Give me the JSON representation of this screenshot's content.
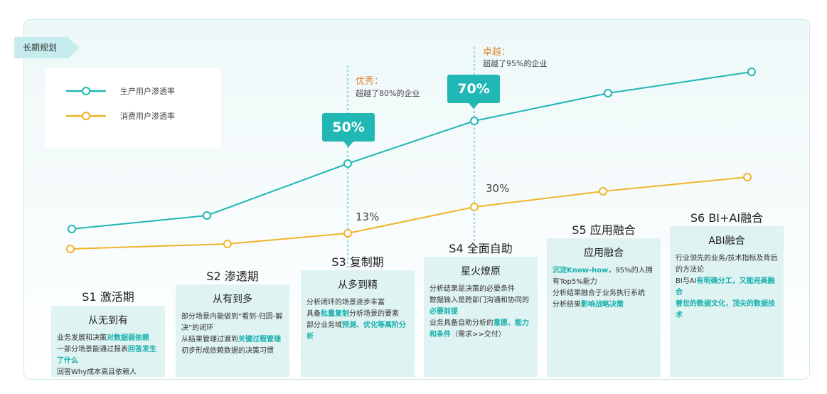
{
  "tag": "长期规划",
  "legend": {
    "series1": "生产用户渗透率",
    "series2": "消费用户渗透率"
  },
  "annotations": {
    "s3_title": "优秀：",
    "s3_sub": "超越了80%的企业",
    "s4_title": "卓越：",
    "s4_sub": "超越了95%的企业"
  },
  "bubbles": {
    "s3": "50%",
    "s4": "70%"
  },
  "pcts": {
    "s3": "13%",
    "s4": "30%"
  },
  "colors": {
    "teal": "#20b7b5",
    "yellow": "#f0b429"
  },
  "chart_data": {
    "type": "line",
    "categories": [
      "S1",
      "S2",
      "S3",
      "S4",
      "S5",
      "S6"
    ],
    "series": [
      {
        "name": "生产用户渗透率",
        "values": [
          null,
          null,
          50,
          70,
          null,
          null
        ]
      },
      {
        "name": "消费用户渗透率",
        "values": [
          null,
          null,
          13,
          30,
          null,
          null
        ]
      }
    ]
  },
  "stages": [
    {
      "title": "S1 激活期",
      "heading": "从无到有",
      "lines": [
        [
          {
            "t": "业务发展和决策"
          },
          {
            "t": "对数据弱依赖",
            "hl": true
          }
        ],
        [
          {
            "t": "一部分场景能通过报表"
          },
          {
            "t": "回答发生了什么",
            "hl": true
          }
        ],
        [
          {
            "t": "回答Why成本高且依赖人"
          }
        ]
      ]
    },
    {
      "title": "S2 渗透期",
      "heading": "从有到多",
      "lines": [
        [
          {
            "t": "部分场景内能做到“看到-归因-解决”的闭环"
          }
        ],
        [
          {
            "t": "从结果管理过渡到"
          },
          {
            "t": "关键过程管理",
            "hl": true
          }
        ],
        [
          {
            "t": "初步形成依赖数据的决策习惯"
          }
        ]
      ]
    },
    {
      "title": "S3 复制期",
      "heading": "从多到精",
      "lines": [
        [
          {
            "t": "分析闭环的场景逐步丰富"
          }
        ],
        [
          {
            "t": "具备"
          },
          {
            "t": "批量复制",
            "hl": true
          },
          {
            "t": "分析场景的要素"
          }
        ],
        [
          {
            "t": "部分业务域"
          },
          {
            "t": "预测、优化等高阶分析",
            "hl": true
          }
        ]
      ]
    },
    {
      "title": "S4 全面自助",
      "heading": "星火燎原",
      "lines": [
        [
          {
            "t": "分析结果是决策的必要条件"
          }
        ],
        [
          {
            "t": "数据输入是跨部门沟通和协同的"
          },
          {
            "t": "必要前提",
            "hl": true
          }
        ],
        [
          {
            "t": "业务具备自助分析的"
          },
          {
            "t": "意愿、能力和条件",
            "hl": true
          },
          {
            "t": "（需求>>交付）"
          }
        ]
      ]
    },
    {
      "title": "S5 应用融合",
      "heading": "应用融合",
      "lines": [
        [
          {
            "t": "沉淀Know-how",
            "hl": true
          },
          {
            "t": "，95%的人拥有Top5%能力"
          }
        ],
        [
          {
            "t": "分析结果融合于业务执行系统"
          }
        ],
        [
          {
            "t": "分析结果"
          },
          {
            "t": "影响战略决策",
            "hl": true
          }
        ]
      ]
    },
    {
      "title": "S6 BI+AI融合",
      "heading": "ABI融合",
      "lines": [
        [
          {
            "t": "行业领先的业务/技术指标及背后的方法论"
          }
        ],
        [
          {
            "t": " BI与AI"
          },
          {
            "t": "有明确分工，又能完美融合",
            "hl": true
          }
        ],
        [
          {
            "t": "普世的数据文化，顶尖的数据技术",
            "hl": true
          }
        ]
      ]
    }
  ]
}
